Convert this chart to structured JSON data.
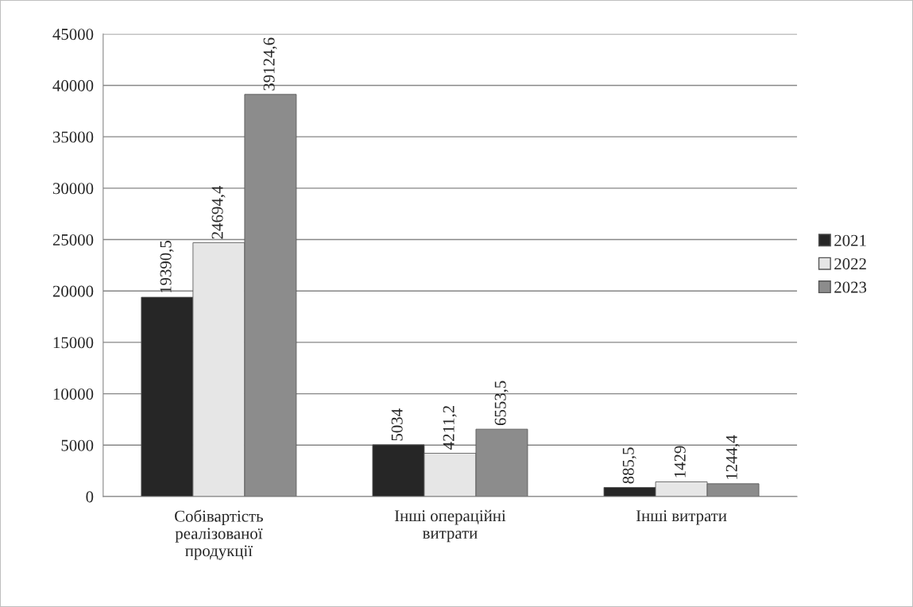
{
  "chart_data": {
    "type": "bar",
    "categories": [
      "Собівартість\nреалізованої\nпродукції",
      "Інші операційні\nвитрати",
      "Інші витрати"
    ],
    "series": [
      {
        "name": "2021",
        "color": "#262626",
        "values": [
          19390.5,
          5034,
          885.5
        ],
        "value_labels": [
          "19390,5",
          "5034",
          "885,5"
        ]
      },
      {
        "name": "2022",
        "color": "#e6e6e6",
        "values": [
          24694.4,
          4211.2,
          1429
        ],
        "value_labels": [
          "24694,4",
          "4211,2",
          "1429"
        ]
      },
      {
        "name": "2023",
        "color": "#8c8c8c",
        "values": [
          39124.6,
          6553.5,
          1244.4
        ],
        "value_labels": [
          "39124,6",
          "6553,5",
          "1244,4"
        ]
      }
    ],
    "ylim": [
      0,
      45000
    ],
    "yticks": [
      0,
      5000,
      10000,
      15000,
      20000,
      25000,
      30000,
      35000,
      40000,
      45000
    ],
    "grid": "y",
    "legend": "right"
  }
}
